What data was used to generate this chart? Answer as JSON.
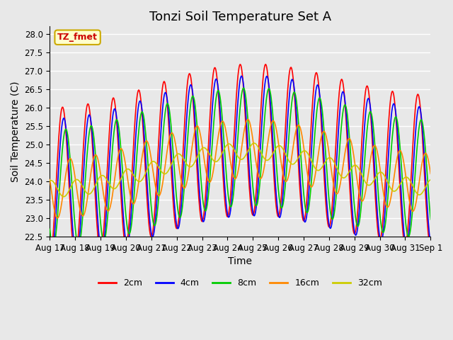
{
  "title": "Tonzi Soil Temperature Set A",
  "xlabel": "Time",
  "ylabel": "Soil Temperature (C)",
  "ylim": [
    22.5,
    28.2
  ],
  "n_days": 15,
  "plot_bg_color": "#e8e8e8",
  "grid_color": "white",
  "legend_label": "TZ_fmet",
  "legend_bg": "#ffffcc",
  "legend_edge": "#ccaa00",
  "series_colors": {
    "2cm": "#ff0000",
    "4cm": "#0000ff",
    "8cm": "#00cc00",
    "16cm": "#ff8800",
    "32cm": "#cccc00"
  },
  "series_linewidth": 1.2,
  "xtick_labels": [
    "Aug 17",
    "Aug 18",
    "Aug 19",
    "Aug 20",
    "Aug 21",
    "Aug 22",
    "Aug 23",
    "Aug 24",
    "Aug 25",
    "Aug 26",
    "Aug 27",
    "Aug 28",
    "Aug 29",
    "Aug 30",
    "Aug 31",
    "Sep 1"
  ],
  "title_fontsize": 13,
  "axis_label_fontsize": 10,
  "tick_fontsize": 8.5,
  "legend_fontsize": 9
}
